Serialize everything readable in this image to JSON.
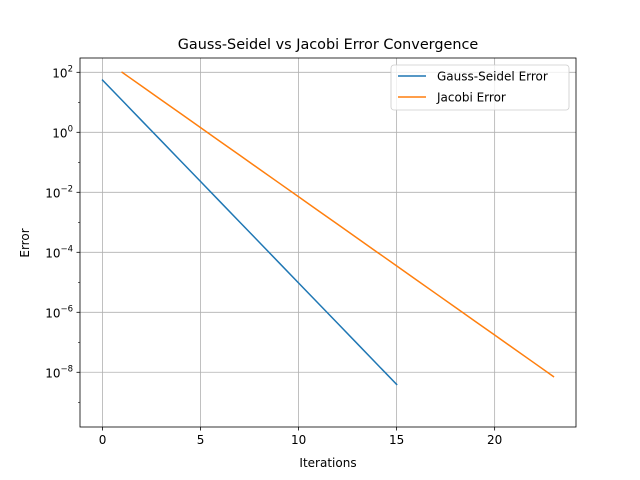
{
  "chart_data": {
    "type": "line",
    "title": "Gauss-Seidel vs Jacobi Error Convergence",
    "xlabel": "Iterations",
    "ylabel": "Error",
    "yscale": "log",
    "xlim": [
      -1.15,
      24.15
    ],
    "ylim": [
      1.5e-10,
      300.0
    ],
    "grid": true,
    "legend_position": "top-right",
    "xticks": [
      {
        "value": 0,
        "label": "0"
      },
      {
        "value": 5,
        "label": "5"
      },
      {
        "value": 10,
        "label": "10"
      },
      {
        "value": 15,
        "label": "15"
      },
      {
        "value": 20,
        "label": "20"
      }
    ],
    "yticks": [
      {
        "value": 100,
        "base": "10",
        "exp": "2"
      },
      {
        "value": 1,
        "base": "10",
        "exp": "0"
      },
      {
        "value": 0.01,
        "base": "10",
        "exp": "−2"
      },
      {
        "value": 0.0001,
        "base": "10",
        "exp": "−4"
      },
      {
        "value": 1e-06,
        "base": "10",
        "exp": "−6"
      },
      {
        "value": 1e-08,
        "base": "10",
        "exp": "−8"
      }
    ],
    "series": [
      {
        "name": "Gauss-Seidel Error",
        "color": "#1f77b4",
        "x": [
          0,
          1,
          2,
          3,
          4,
          5,
          6,
          7,
          8,
          9,
          10,
          11,
          12,
          13,
          14,
          15
        ],
        "y": [
          55,
          11.6,
          2.44,
          0.515,
          0.1085,
          0.02286,
          0.004818,
          0.001015,
          0.0002139,
          4.508e-05,
          9.5e-06,
          2.002e-06,
          4.219e-07,
          8.89e-08,
          1.873e-08,
          3.95e-09
        ]
      },
      {
        "name": "Jacobi Error",
        "color": "#ff7f0e",
        "x": [
          1,
          2,
          3,
          4,
          5,
          6,
          7,
          8,
          9,
          10,
          11,
          12,
          13,
          14,
          15,
          16,
          17,
          18,
          19,
          20,
          21,
          22,
          23
        ],
        "y": [
          100,
          34.6,
          11.97,
          4.14,
          1.432,
          0.4955,
          0.1714,
          0.05931,
          0.02052,
          0.0071,
          0.002456,
          0.0008498,
          0.000294,
          0.0001017,
          3.52e-05,
          1.218e-05,
          4.213e-06,
          1.458e-06,
          5.043e-07,
          1.745e-07,
          6.037e-08,
          2.089e-08,
          7.2e-09
        ]
      }
    ]
  }
}
